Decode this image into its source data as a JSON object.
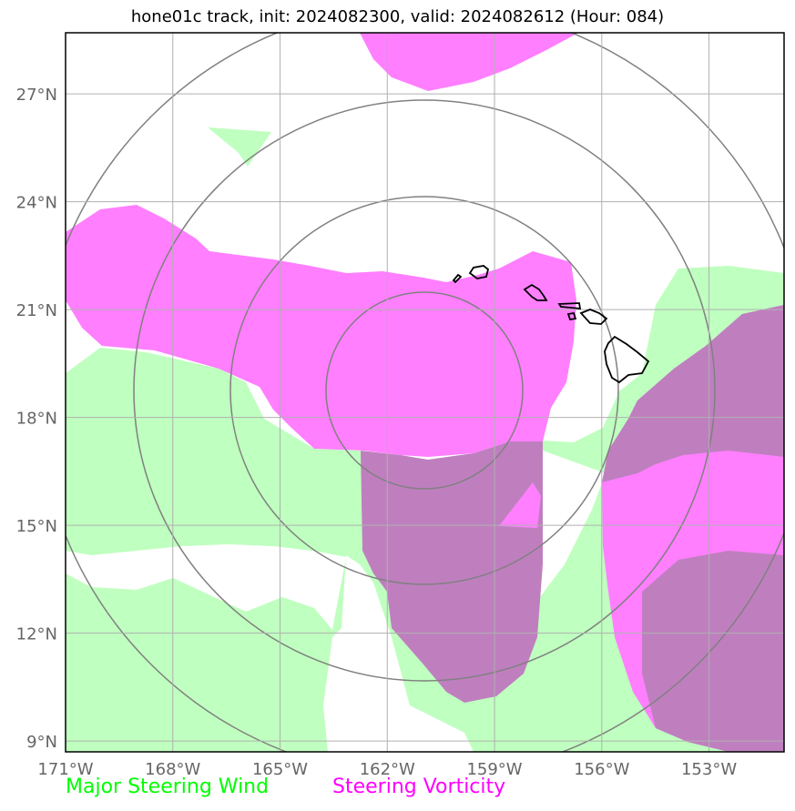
{
  "title": "hone01c track, init: 2024082300, valid: 2024082612 (Hour: 084)",
  "map": {
    "lon_range": [
      -171,
      -150.9
    ],
    "lat_range": [
      8.7,
      28.7
    ],
    "x_ticks": [
      "171°W",
      "168°W",
      "165°W",
      "162°W",
      "159°W",
      "156°W",
      "153°W"
    ],
    "y_ticks": [
      "9°N",
      "12°N",
      "15°N",
      "18°N",
      "21°N",
      "24°N",
      "27°N"
    ],
    "grid": true
  },
  "legend": {
    "wind": {
      "label": "Major Steering Wind",
      "color": "#00ff00"
    },
    "vorticity": {
      "label": "Steering Vorticity",
      "color": "#ff00ff"
    }
  },
  "colors": {
    "wind_fill": "#bfffbf",
    "vorticity_fill": "#ff7fff",
    "overlap_fill": "#bf7fbf",
    "grid": "#b0b0b0",
    "rings": "#808080",
    "coast": "#000000"
  }
}
